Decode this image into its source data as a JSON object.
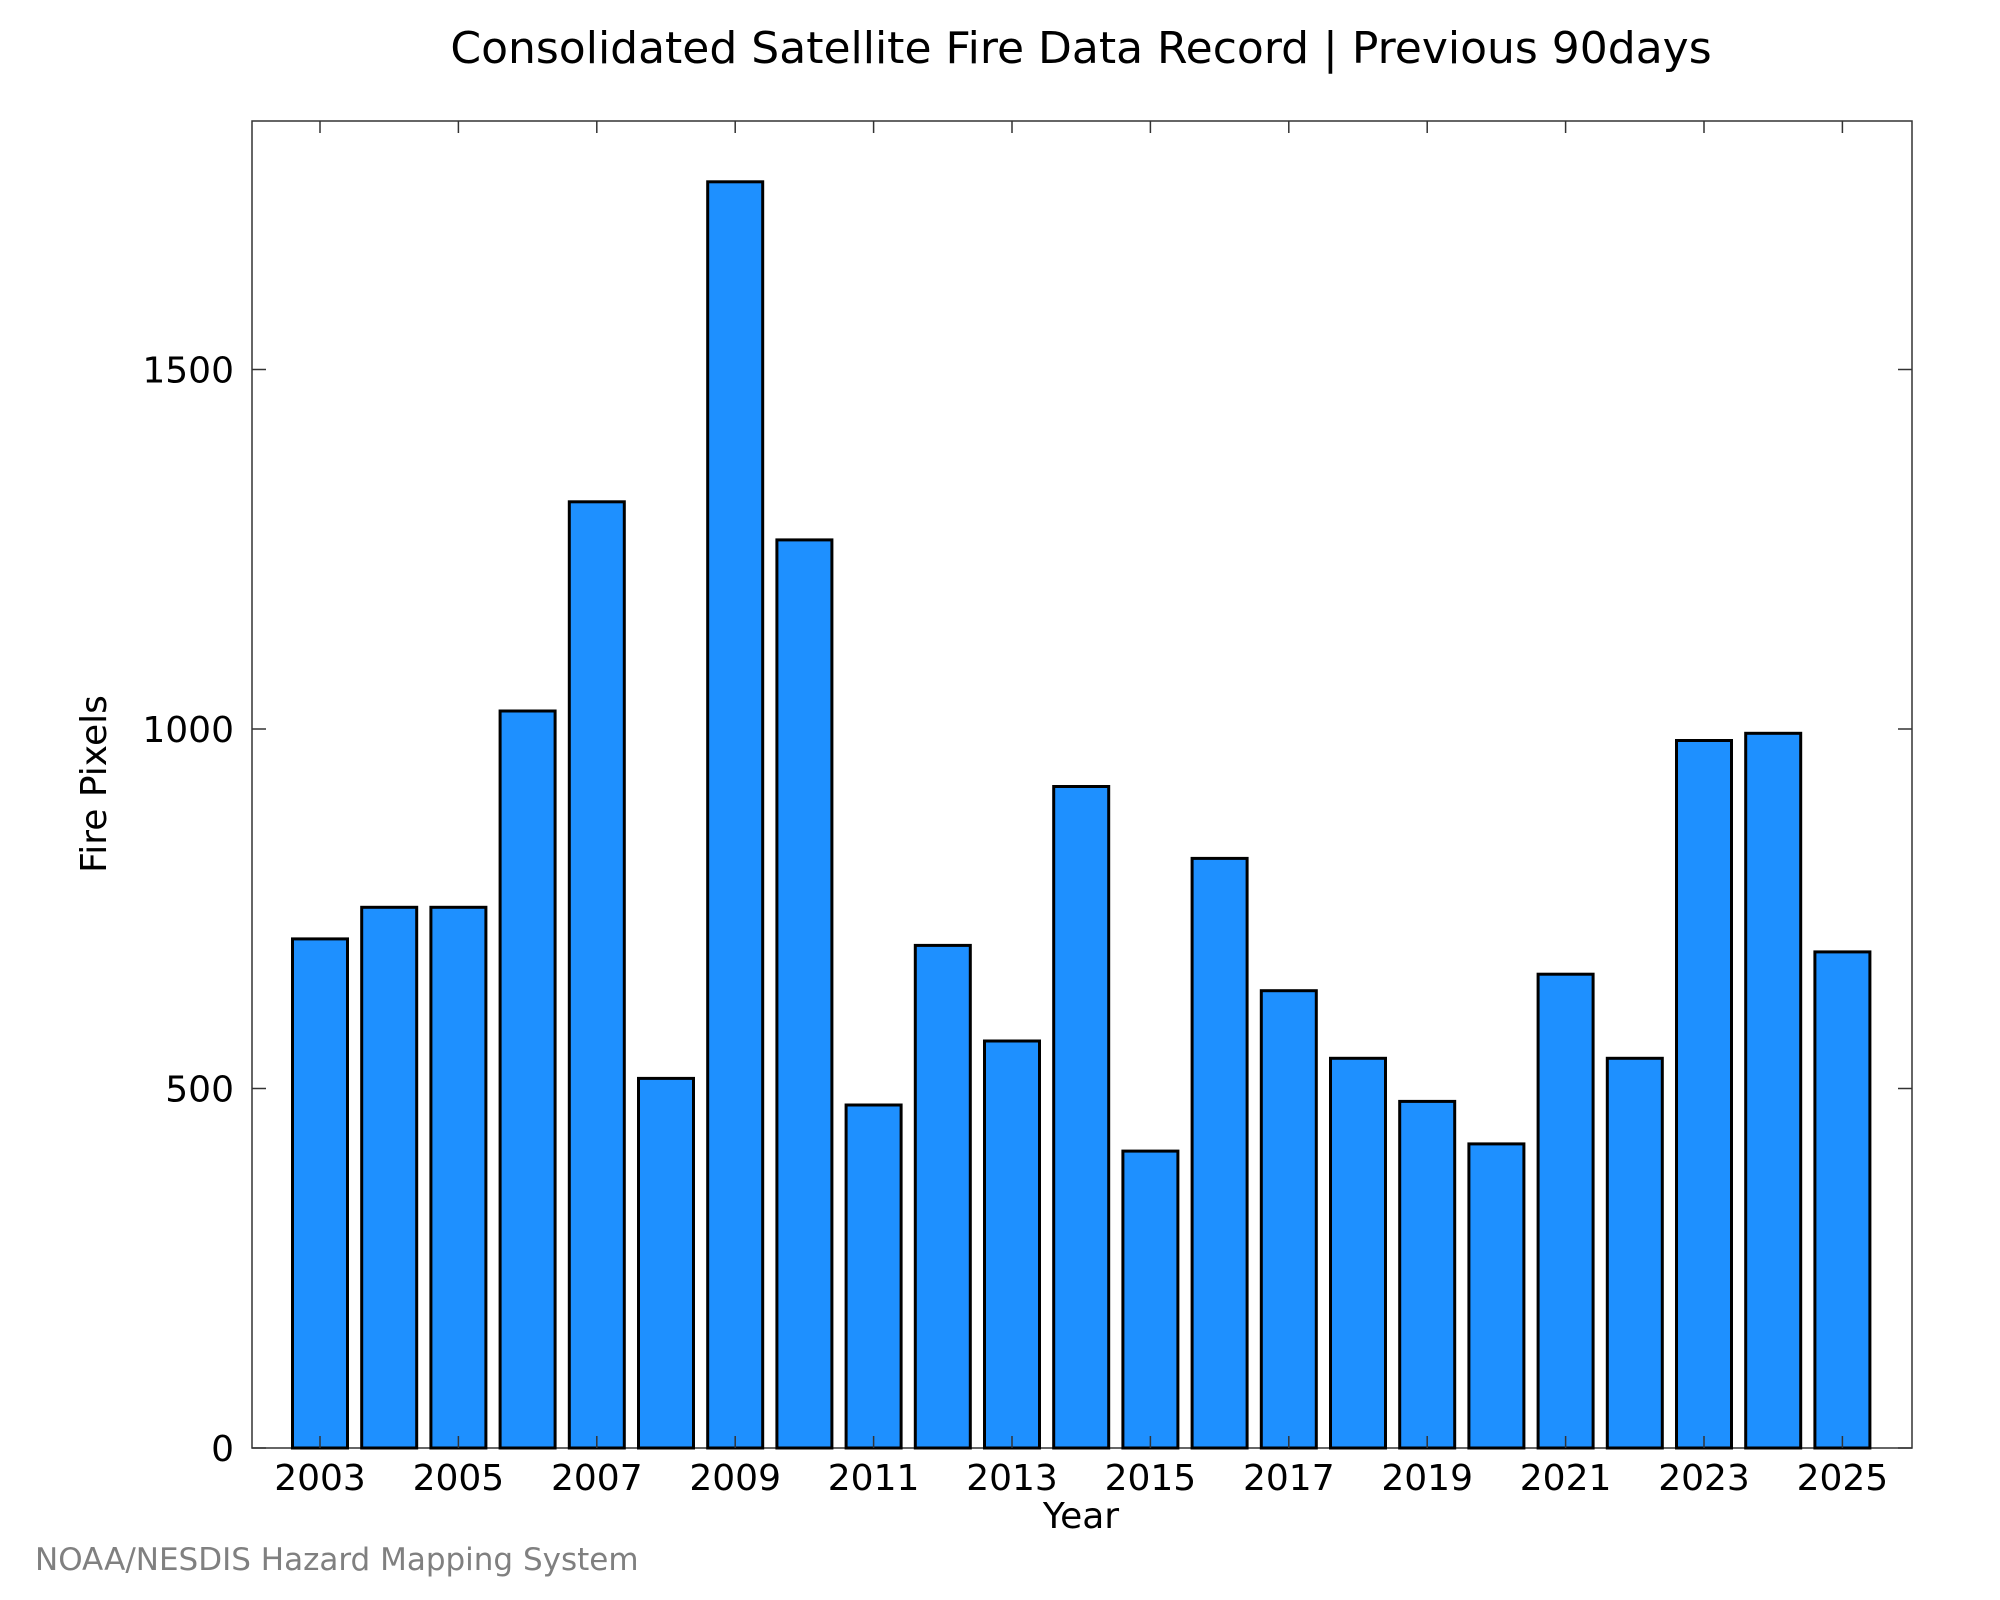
{
  "credit": "NOAA/NESDIS Hazard Mapping System",
  "chart_data": {
    "type": "bar",
    "title": "Consolidated Satellite Fire Data Record | Previous 90days",
    "xlabel": "Year",
    "ylabel": "Fire Pixels",
    "categories": [
      "2003",
      "2004",
      "2005",
      "2006",
      "2007",
      "2008",
      "2009",
      "2010",
      "2011",
      "2012",
      "2013",
      "2014",
      "2015",
      "2016",
      "2017",
      "2018",
      "2019",
      "2020",
      "2021",
      "2022",
      "2023",
      "2024",
      "2025"
    ],
    "values": [
      708,
      752,
      752,
      1025,
      1316,
      514,
      1761,
      1263,
      477,
      699,
      566,
      920,
      413,
      820,
      636,
      542,
      482,
      423,
      659,
      542,
      984,
      994,
      690
    ],
    "x_tick_labels": [
      "2003",
      "2005",
      "2007",
      "2009",
      "2011",
      "2013",
      "2015",
      "2017",
      "2019",
      "2021",
      "2023",
      "2025"
    ],
    "y_ticks": [
      0,
      500,
      1000,
      1500
    ],
    "ylim": [
      0,
      1850
    ],
    "bar_color": "#1e90ff",
    "grid": false,
    "legend": "none"
  }
}
